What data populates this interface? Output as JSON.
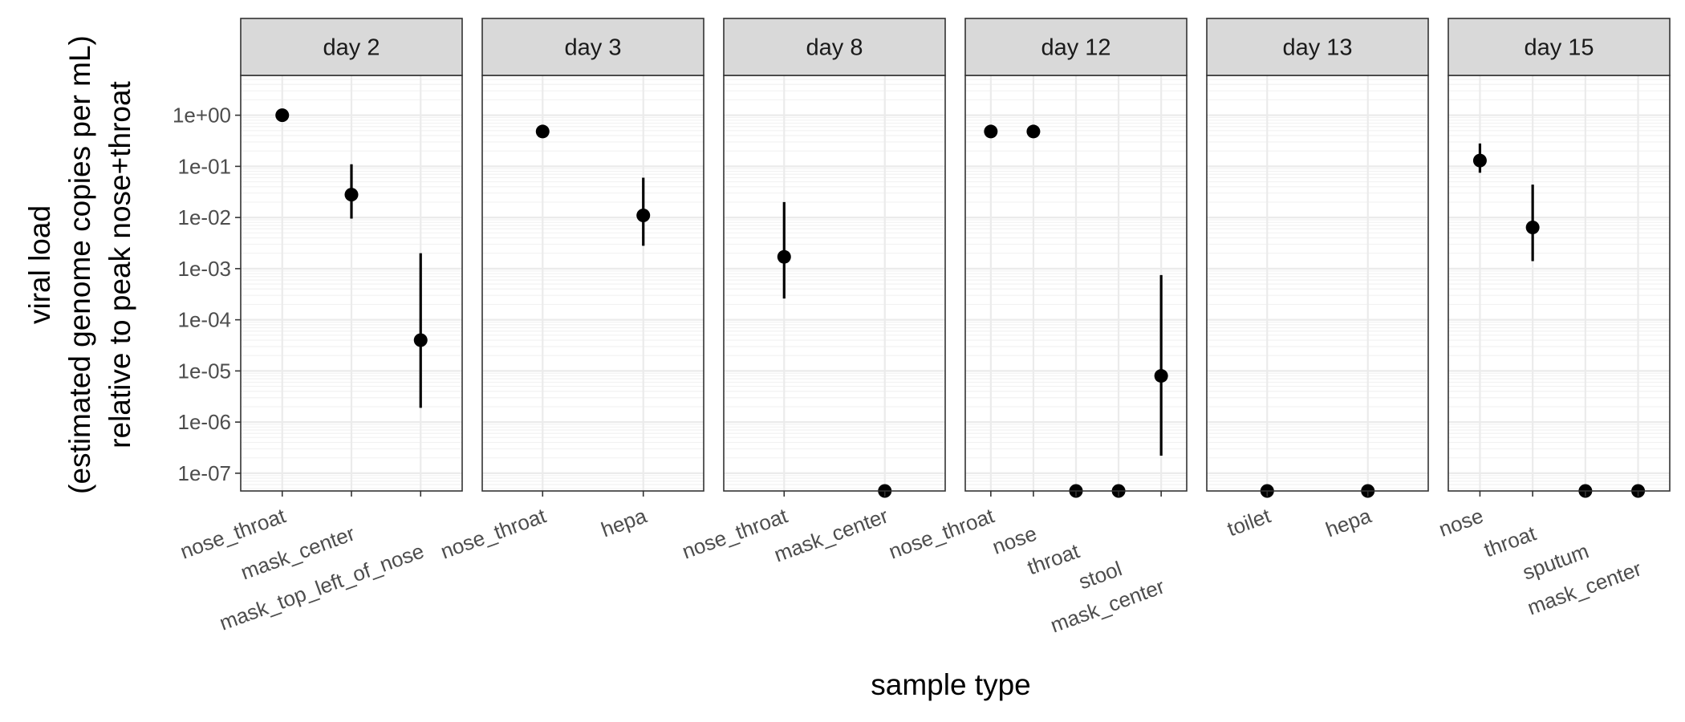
{
  "chart_data": {
    "type": "scatter",
    "facet_by": "day",
    "x_title": "sample type",
    "y_title_lines": [
      "viral load",
      "(estimated genome copies per mL)",
      "relative to peak nose+throat"
    ],
    "y_scale": "log10",
    "y_range": [
      4.5e-08,
      6.0
    ],
    "y_ticks": [
      1.0,
      0.1,
      0.01,
      0.001,
      0.0001,
      1e-05,
      1e-06,
      1e-07
    ],
    "y_tick_labels": [
      "1e+00",
      "1e-01",
      "1e-02",
      "1e-03",
      "1e-04",
      "1e-05",
      "1e-06",
      "1e-07"
    ],
    "grid": true,
    "panels": [
      {
        "label": "day 2",
        "categories": [
          "nose_throat",
          "mask_center",
          "mask_top_left_of_nose"
        ],
        "points": [
          {
            "x": "nose_throat",
            "y": 1.0
          },
          {
            "x": "mask_center",
            "y": 0.028,
            "lo": 0.0095,
            "hi": 0.11
          },
          {
            "x": "mask_top_left_of_nose",
            "y": 4e-05,
            "lo": 1.9e-06,
            "hi": 0.002
          }
        ]
      },
      {
        "label": "day 3",
        "categories": [
          "nose_throat",
          "hepa"
        ],
        "points": [
          {
            "x": "nose_throat",
            "y": 0.48
          },
          {
            "x": "hepa",
            "y": 0.011,
            "lo": 0.0028,
            "hi": 0.06
          }
        ]
      },
      {
        "label": "day 8",
        "categories": [
          "nose_throat",
          "mask_center"
        ],
        "points": [
          {
            "x": "nose_throat",
            "y": 0.0017,
            "lo": 0.00026,
            "hi": 0.02
          },
          {
            "x": "mask_center",
            "y": 4.5e-08
          }
        ]
      },
      {
        "label": "day 12",
        "categories": [
          "nose_throat",
          "nose",
          "throat",
          "stool",
          "mask_center"
        ],
        "points": [
          {
            "x": "nose_throat",
            "y": 0.48
          },
          {
            "x": "nose",
            "y": 0.48
          },
          {
            "x": "throat",
            "y": 4.5e-08
          },
          {
            "x": "stool",
            "y": 4.5e-08
          },
          {
            "x": "mask_center",
            "y": 8e-06,
            "lo": 2.2e-07,
            "hi": 0.00075
          }
        ]
      },
      {
        "label": "day 13",
        "categories": [
          "toilet",
          "hepa"
        ],
        "points": [
          {
            "x": "toilet",
            "y": 4.5e-08
          },
          {
            "x": "hepa",
            "y": 4.5e-08
          }
        ]
      },
      {
        "label": "day 15",
        "categories": [
          "nose",
          "throat",
          "sputum",
          "mask_center"
        ],
        "points": [
          {
            "x": "nose",
            "y": 0.13,
            "lo": 0.075,
            "hi": 0.28
          },
          {
            "x": "throat",
            "y": 0.0064,
            "lo": 0.0014,
            "hi": 0.044
          },
          {
            "x": "sputum",
            "y": 4.5e-08
          },
          {
            "x": "mask_center",
            "y": 4.5e-08
          }
        ]
      }
    ]
  }
}
